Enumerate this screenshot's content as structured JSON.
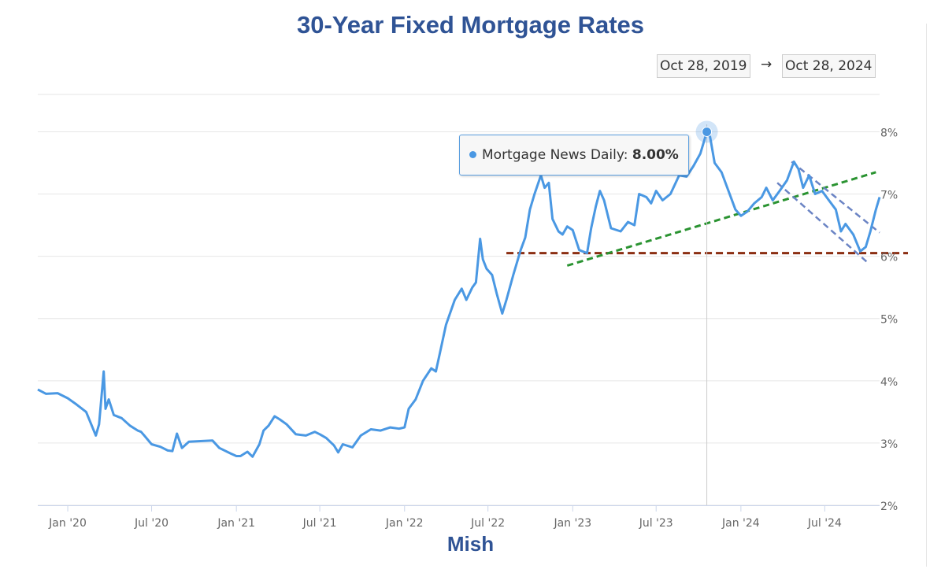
{
  "page": {
    "title": "30-Year Fixed Mortgage Rates",
    "credit": "Mish",
    "range_from": "Oct 28, 2019",
    "range_arrow": "→",
    "range_to": "Oct 28, 2024"
  },
  "tooltip": {
    "series": "Mortgage News Daily",
    "separator": ": ",
    "value": "8.00%"
  },
  "colors": {
    "line": "#4a98e3",
    "title": "#2f5395",
    "trend_support": "#8b2e12",
    "trend_rising": "#2a9331",
    "trend_channel": "#6b84c4",
    "grid": "#e6e6e6"
  },
  "chart_data": {
    "type": "line",
    "title": "30-Year Fixed Mortgage Rates",
    "xlabel": "",
    "ylabel": "",
    "x_start": "2019-10-28",
    "x_end": "2024-10-28",
    "ylim": [
      2,
      8.6
    ],
    "x_ticks": [
      "Jan '20",
      "Jul '20",
      "Jan '21",
      "Jul '21",
      "Jan '22",
      "Jul '22",
      "Jan '23",
      "Jul '23",
      "Jan '24",
      "Jul '24"
    ],
    "x_tick_dates": [
      "2020-01-01",
      "2020-07-01",
      "2021-01-01",
      "2021-07-01",
      "2022-01-01",
      "2022-07-01",
      "2023-01-01",
      "2023-07-01",
      "2024-01-01",
      "2024-07-01"
    ],
    "y_ticks": [
      "2%",
      "3%",
      "4%",
      "5%",
      "6%",
      "7%",
      "8%"
    ],
    "y_tick_values": [
      2,
      3,
      4,
      5,
      6,
      7,
      8
    ],
    "grid": "horizontal",
    "legend": "none",
    "series": [
      {
        "name": "Mortgage News Daily",
        "points": [
          [
            "2019-10-28",
            3.86
          ],
          [
            "2019-11-15",
            3.79
          ],
          [
            "2019-12-10",
            3.8
          ],
          [
            "2020-01-01",
            3.72
          ],
          [
            "2020-01-20",
            3.62
          ],
          [
            "2020-02-10",
            3.5
          ],
          [
            "2020-03-02",
            3.12
          ],
          [
            "2020-03-09",
            3.3
          ],
          [
            "2020-03-19",
            4.15
          ],
          [
            "2020-03-23",
            3.55
          ],
          [
            "2020-03-30",
            3.7
          ],
          [
            "2020-04-10",
            3.45
          ],
          [
            "2020-04-27",
            3.4
          ],
          [
            "2020-05-15",
            3.28
          ],
          [
            "2020-06-01",
            3.2
          ],
          [
            "2020-06-08",
            3.18
          ],
          [
            "2020-06-15",
            3.12
          ],
          [
            "2020-07-01",
            2.98
          ],
          [
            "2020-07-20",
            2.94
          ],
          [
            "2020-08-05",
            2.88
          ],
          [
            "2020-08-15",
            2.87
          ],
          [
            "2020-08-25",
            3.15
          ],
          [
            "2020-09-05",
            2.92
          ],
          [
            "2020-09-20",
            3.02
          ],
          [
            "2020-10-15",
            3.03
          ],
          [
            "2020-11-10",
            3.04
          ],
          [
            "2020-11-25",
            2.92
          ],
          [
            "2020-12-20",
            2.83
          ],
          [
            "2021-01-01",
            2.79
          ],
          [
            "2021-01-10",
            2.79
          ],
          [
            "2021-01-25",
            2.86
          ],
          [
            "2021-02-05",
            2.78
          ],
          [
            "2021-02-20",
            2.98
          ],
          [
            "2021-03-01",
            3.2
          ],
          [
            "2021-03-12",
            3.28
          ],
          [
            "2021-03-25",
            3.43
          ],
          [
            "2021-04-05",
            3.38
          ],
          [
            "2021-04-20",
            3.3
          ],
          [
            "2021-05-10",
            3.14
          ],
          [
            "2021-06-01",
            3.12
          ],
          [
            "2021-06-20",
            3.18
          ],
          [
            "2021-07-01",
            3.14
          ],
          [
            "2021-07-15",
            3.08
          ],
          [
            "2021-08-01",
            2.96
          ],
          [
            "2021-08-10",
            2.85
          ],
          [
            "2021-08-20",
            2.98
          ],
          [
            "2021-09-10",
            2.93
          ],
          [
            "2021-09-28",
            3.12
          ],
          [
            "2021-10-20",
            3.22
          ],
          [
            "2021-11-10",
            3.2
          ],
          [
            "2021-12-01",
            3.25
          ],
          [
            "2021-12-20",
            3.23
          ],
          [
            "2022-01-01",
            3.25
          ],
          [
            "2022-01-10",
            3.55
          ],
          [
            "2022-01-25",
            3.7
          ],
          [
            "2022-02-10",
            4.0
          ],
          [
            "2022-02-28",
            4.2
          ],
          [
            "2022-03-10",
            4.15
          ],
          [
            "2022-03-18",
            4.42
          ],
          [
            "2022-04-01",
            4.9
          ],
          [
            "2022-04-20",
            5.3
          ],
          [
            "2022-05-05",
            5.48
          ],
          [
            "2022-05-15",
            5.3
          ],
          [
            "2022-05-28",
            5.5
          ],
          [
            "2022-06-05",
            5.58
          ],
          [
            "2022-06-14",
            6.28
          ],
          [
            "2022-06-20",
            5.95
          ],
          [
            "2022-06-28",
            5.8
          ],
          [
            "2022-07-10",
            5.7
          ],
          [
            "2022-07-20",
            5.4
          ],
          [
            "2022-08-01",
            5.08
          ],
          [
            "2022-08-10",
            5.3
          ],
          [
            "2022-08-25",
            5.7
          ],
          [
            "2022-09-10",
            6.1
          ],
          [
            "2022-09-20",
            6.3
          ],
          [
            "2022-09-30",
            6.75
          ],
          [
            "2022-10-10",
            7.0
          ],
          [
            "2022-10-24",
            7.3
          ],
          [
            "2022-11-01",
            7.1
          ],
          [
            "2022-11-10",
            7.18
          ],
          [
            "2022-11-18",
            6.6
          ],
          [
            "2022-12-01",
            6.4
          ],
          [
            "2022-12-10",
            6.35
          ],
          [
            "2022-12-20",
            6.48
          ],
          [
            "2023-01-01",
            6.42
          ],
          [
            "2023-01-15",
            6.1
          ],
          [
            "2023-02-01",
            6.05
          ],
          [
            "2023-02-10",
            6.45
          ],
          [
            "2023-02-20",
            6.8
          ],
          [
            "2023-03-01",
            7.05
          ],
          [
            "2023-03-10",
            6.9
          ],
          [
            "2023-03-25",
            6.45
          ],
          [
            "2023-04-15",
            6.4
          ],
          [
            "2023-05-01",
            6.55
          ],
          [
            "2023-05-15",
            6.5
          ],
          [
            "2023-05-25",
            7.0
          ],
          [
            "2023-06-10",
            6.95
          ],
          [
            "2023-06-20",
            6.85
          ],
          [
            "2023-07-01",
            7.05
          ],
          [
            "2023-07-15",
            6.9
          ],
          [
            "2023-08-01",
            7.0
          ],
          [
            "2023-08-20",
            7.3
          ],
          [
            "2023-09-05",
            7.28
          ],
          [
            "2023-09-20",
            7.45
          ],
          [
            "2023-10-05",
            7.65
          ],
          [
            "2023-10-19",
            8.0
          ],
          [
            "2023-10-26",
            7.92
          ],
          [
            "2023-11-05",
            7.5
          ],
          [
            "2023-11-20",
            7.35
          ],
          [
            "2023-12-05",
            7.05
          ],
          [
            "2023-12-20",
            6.75
          ],
          [
            "2024-01-01",
            6.65
          ],
          [
            "2024-01-15",
            6.72
          ],
          [
            "2024-01-30",
            6.85
          ],
          [
            "2024-02-15",
            6.95
          ],
          [
            "2024-02-25",
            7.1
          ],
          [
            "2024-03-10",
            6.9
          ],
          [
            "2024-03-25",
            7.05
          ],
          [
            "2024-04-10",
            7.22
          ],
          [
            "2024-04-25",
            7.52
          ],
          [
            "2024-05-05",
            7.4
          ],
          [
            "2024-05-15",
            7.1
          ],
          [
            "2024-05-28",
            7.3
          ],
          [
            "2024-06-10",
            7.0
          ],
          [
            "2024-06-25",
            7.05
          ],
          [
            "2024-07-10",
            6.9
          ],
          [
            "2024-07-25",
            6.75
          ],
          [
            "2024-08-05",
            6.4
          ],
          [
            "2024-08-15",
            6.52
          ],
          [
            "2024-09-01",
            6.35
          ],
          [
            "2024-09-16",
            6.08
          ],
          [
            "2024-09-28",
            6.15
          ],
          [
            "2024-10-08",
            6.4
          ],
          [
            "2024-10-20",
            6.75
          ],
          [
            "2024-10-28",
            6.95
          ]
        ]
      }
    ],
    "trendlines": [
      {
        "kind": "support",
        "style": "dashed",
        "points": [
          [
            "2022-08-10",
            6.05
          ],
          [
            "2024-10-28",
            6.05
          ]
        ]
      },
      {
        "kind": "rising",
        "style": "dashed",
        "points": [
          [
            "2022-12-20",
            5.85
          ],
          [
            "2024-10-20",
            7.35
          ]
        ]
      },
      {
        "kind": "channel",
        "style": "dashed",
        "points": [
          [
            "2024-04-20",
            7.52
          ],
          [
            "2024-10-28",
            6.38
          ]
        ]
      },
      {
        "kind": "channel",
        "style": "dashed",
        "points": [
          [
            "2024-03-20",
            7.18
          ],
          [
            "2024-10-05",
            5.88
          ]
        ]
      }
    ],
    "highlight": {
      "date": "2023-10-19",
      "value": 8.0,
      "label": "8.00%"
    }
  }
}
